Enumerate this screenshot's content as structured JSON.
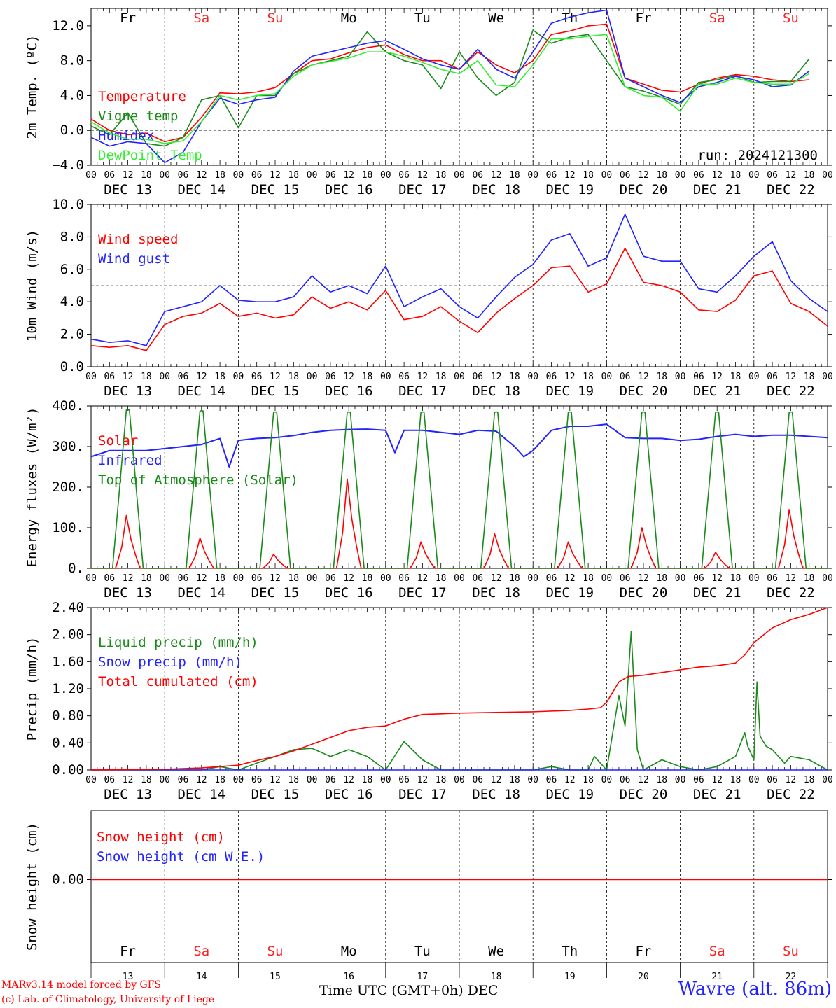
{
  "footer": {
    "model_line": "MARv3.14 model forced by GFS",
    "copyright_line": "(c) Lab. of Climatology, University of Liege",
    "x_title": "Time UTC (GMT+0h) DEC",
    "station": "Wavre (alt. 86m)"
  },
  "run_label": "run: 2024121300",
  "colors": {
    "red": "#ff0000",
    "green": "#1a8a1a",
    "blue": "#2323ff",
    "light_green": "#33ee33",
    "weekend": "#ff2020"
  },
  "chart_data": [
    {
      "type": "line",
      "ylabel": "2m Temp. (ºC)",
      "ylim": [
        -4,
        14
      ],
      "yticks": [
        "−4.0",
        "0.0",
        "4.0",
        "8.0",
        "12.0"
      ],
      "ytick_values": [
        -4,
        0,
        4,
        8,
        12
      ],
      "ref_line": 0,
      "day_names": [
        "Fr",
        "Sa",
        "Su",
        "Mo",
        "Tu",
        "We",
        "Th",
        "Fr",
        "Sa",
        "Su"
      ],
      "weekend": [
        false,
        true,
        true,
        false,
        false,
        false,
        false,
        false,
        true,
        true
      ],
      "x_hour_labels": [
        "00",
        "06",
        "12",
        "18"
      ],
      "x_date_labels": [
        "DEC 13",
        "DEC 14",
        "DEC 15",
        "DEC 16",
        "DEC 17",
        "DEC 18",
        "DEC 19",
        "DEC 20",
        "DEC 21",
        "DEC 22"
      ],
      "x_unit": "hours since 2024-12-13 00 UTC",
      "series": [
        {
          "name": "Temperature",
          "color": "#ff0000",
          "x": [
            0,
            6,
            12,
            18,
            24,
            30,
            36,
            42,
            48,
            54,
            60,
            66,
            72,
            78,
            84,
            90,
            96,
            102,
            108,
            114,
            120,
            126,
            132,
            138,
            144,
            150,
            156,
            162,
            168,
            174,
            180,
            186,
            192,
            198,
            204,
            210,
            216,
            222,
            228,
            234
          ],
          "y": [
            1.3,
            0.0,
            -0.5,
            -0.3,
            -1.3,
            -0.8,
            1.5,
            4.3,
            4.2,
            4.4,
            4.9,
            6.5,
            8.0,
            8.2,
            8.9,
            9.5,
            9.8,
            8.7,
            8.0,
            8.0,
            7.0,
            9.0,
            7.5,
            6.6,
            8.0,
            11.0,
            11.4,
            12.0,
            12.2,
            6.0,
            5.3,
            4.6,
            4.4,
            5.3,
            6.0,
            6.4,
            6.2,
            5.8,
            5.6,
            5.8
          ]
        },
        {
          "name": "Vigne temp",
          "color": "#1a8a1a",
          "x": [
            0,
            6,
            12,
            18,
            24,
            30,
            36,
            42,
            48,
            54,
            60,
            66,
            72,
            78,
            84,
            90,
            96,
            102,
            108,
            114,
            120,
            126,
            132,
            138,
            144,
            150,
            156,
            162,
            168,
            174,
            180,
            186,
            192,
            198,
            204,
            210,
            216,
            222,
            228,
            234
          ],
          "y": [
            0.5,
            -0.5,
            2.0,
            -1.5,
            -1.8,
            -0.8,
            3.5,
            4.0,
            0.3,
            4.0,
            4.0,
            6.5,
            7.5,
            8.0,
            8.5,
            11.3,
            9.0,
            8.0,
            7.5,
            4.8,
            9.0,
            6.0,
            4.0,
            5.5,
            11.5,
            10.0,
            10.7,
            11.0,
            8.0,
            5.0,
            4.5,
            3.8,
            3.0,
            5.5,
            5.8,
            6.3,
            5.5,
            5.6,
            5.6,
            8.2
          ]
        },
        {
          "name": "Humidex",
          "color": "#2323ff",
          "x": [
            0,
            6,
            12,
            18,
            24,
            30,
            36,
            42,
            48,
            54,
            60,
            66,
            72,
            78,
            84,
            90,
            96,
            102,
            108,
            114,
            120,
            126,
            132,
            138,
            144,
            150,
            156,
            162,
            168,
            174,
            180,
            186,
            192,
            198,
            204,
            210,
            216,
            222,
            228,
            234
          ],
          "y": [
            -0.8,
            -1.8,
            -1.3,
            -1.5,
            -3.7,
            -2.5,
            1.0,
            3.7,
            3.0,
            3.5,
            3.8,
            6.8,
            8.5,
            9.0,
            9.5,
            10.0,
            10.3,
            9.3,
            8.2,
            7.5,
            7.0,
            9.3,
            7.0,
            6.0,
            9.0,
            12.3,
            13.0,
            13.5,
            13.8,
            6.0,
            5.0,
            4.0,
            3.2,
            5.0,
            5.5,
            6.2,
            5.8,
            5.0,
            5.2,
            6.8
          ]
        },
        {
          "name": "DewPoint Temp",
          "color": "#33ee33",
          "x": [
            0,
            6,
            12,
            18,
            24,
            30,
            36,
            42,
            48,
            54,
            60,
            66,
            72,
            78,
            84,
            90,
            96,
            102,
            108,
            114,
            120,
            126,
            132,
            138,
            144,
            150,
            156,
            162,
            168,
            174,
            180,
            186,
            192,
            198,
            204,
            210,
            216,
            222,
            228,
            234
          ],
          "y": [
            1.0,
            -0.3,
            -1.0,
            -1.0,
            -1.5,
            -1.2,
            1.0,
            4.0,
            3.5,
            4.0,
            4.2,
            6.2,
            7.5,
            7.9,
            8.3,
            9.0,
            9.0,
            8.5,
            7.8,
            7.0,
            6.5,
            8.0,
            5.2,
            5.0,
            7.5,
            10.5,
            10.5,
            10.8,
            11.0,
            5.0,
            4.0,
            3.8,
            2.2,
            5.3,
            5.3,
            6.0,
            5.5,
            5.3,
            5.3,
            6.5
          ]
        }
      ]
    },
    {
      "type": "line",
      "ylabel": "10m Wind (m/s)",
      "ylim": [
        0,
        10
      ],
      "yticks": [
        "0.0",
        "2.0",
        "4.0",
        "6.0",
        "8.0",
        "10.0"
      ],
      "ytick_values": [
        0,
        2,
        4,
        6,
        8,
        10
      ],
      "ref_line": 5,
      "x_hour_labels": [
        "00",
        "06",
        "12",
        "18"
      ],
      "x_date_labels": [
        "DEC 13",
        "DEC 14",
        "DEC 15",
        "DEC 16",
        "DEC 17",
        "DEC 18",
        "DEC 19",
        "DEC 20",
        "DEC 21",
        "DEC 22"
      ],
      "series": [
        {
          "name": "Wind speed",
          "color": "#ff0000",
          "x": [
            0,
            6,
            12,
            18,
            24,
            30,
            36,
            42,
            48,
            54,
            60,
            66,
            72,
            78,
            84,
            90,
            96,
            102,
            108,
            114,
            120,
            126,
            132,
            138,
            144,
            150,
            156,
            162,
            168,
            174,
            180,
            186,
            192,
            198,
            204,
            210,
            216,
            222,
            228,
            234,
            240
          ],
          "y": [
            1.3,
            1.2,
            1.3,
            1.0,
            2.6,
            3.1,
            3.3,
            3.9,
            3.1,
            3.3,
            3.0,
            3.2,
            4.3,
            3.6,
            4.0,
            3.5,
            4.7,
            2.9,
            3.1,
            3.7,
            2.8,
            2.1,
            3.3,
            4.2,
            5.0,
            6.1,
            6.2,
            4.6,
            5.1,
            7.3,
            5.2,
            5.0,
            4.6,
            3.5,
            3.4,
            4.1,
            5.6,
            5.9,
            3.9,
            3.4,
            2.5
          ]
        },
        {
          "name": "Wind gust",
          "color": "#2323ff",
          "x": [
            0,
            6,
            12,
            18,
            24,
            30,
            36,
            42,
            48,
            54,
            60,
            66,
            72,
            78,
            84,
            90,
            96,
            102,
            108,
            114,
            120,
            126,
            132,
            138,
            144,
            150,
            156,
            162,
            168,
            174,
            180,
            186,
            192,
            198,
            204,
            210,
            216,
            222,
            228,
            234,
            240
          ],
          "y": [
            1.7,
            1.5,
            1.6,
            1.3,
            3.4,
            3.7,
            4.0,
            5.0,
            4.1,
            4.0,
            4.0,
            4.3,
            5.6,
            4.6,
            5.0,
            4.5,
            6.2,
            3.7,
            4.3,
            4.8,
            3.7,
            3.0,
            4.3,
            5.5,
            6.3,
            7.8,
            8.2,
            6.2,
            6.7,
            9.4,
            6.8,
            6.5,
            6.5,
            4.8,
            4.6,
            5.6,
            6.8,
            7.7,
            5.3,
            4.2,
            3.4
          ]
        }
      ]
    },
    {
      "type": "line",
      "ylabel": "Energy fluxes (W/m²)",
      "ylim": [
        0,
        400
      ],
      "yticks": [
        "0.",
        "100.",
        "200.",
        "300.",
        "400."
      ],
      "ytick_values": [
        0,
        100,
        200,
        300,
        400
      ],
      "x_hour_labels": [
        "00",
        "06",
        "12",
        "18"
      ],
      "x_date_labels": [
        "DEC 13",
        "DEC 14",
        "DEC 15",
        "DEC 16",
        "DEC 17",
        "DEC 18",
        "DEC 19",
        "DEC 20",
        "DEC 21",
        "DEC 22"
      ],
      "daily_peaks": {
        "solar": [
          130,
          75,
          35,
          220,
          65,
          85,
          65,
          100,
          40,
          145
        ],
        "top_of_atmosphere": [
          390,
          388,
          385,
          385,
          385,
          385,
          385,
          385,
          385,
          385
        ]
      },
      "series": [
        {
          "name": "Solar",
          "color": "#ff0000"
        },
        {
          "name": "Infrared",
          "color": "#2323ff",
          "x": [
            0,
            6,
            12,
            18,
            24,
            30,
            36,
            42,
            45,
            48,
            54,
            60,
            66,
            72,
            78,
            84,
            90,
            96,
            99,
            102,
            108,
            114,
            120,
            126,
            132,
            138,
            141,
            144,
            150,
            156,
            162,
            168,
            174,
            180,
            186,
            192,
            198,
            204,
            210,
            216,
            222,
            228,
            234,
            240
          ],
          "y": [
            275,
            290,
            290,
            290,
            295,
            300,
            305,
            320,
            250,
            315,
            320,
            322,
            327,
            335,
            340,
            342,
            343,
            340,
            285,
            340,
            340,
            335,
            330,
            340,
            338,
            300,
            275,
            290,
            340,
            350,
            350,
            355,
            322,
            320,
            320,
            315,
            318,
            325,
            330,
            325,
            328,
            328,
            325,
            322
          ]
        },
        {
          "name": "Top of Atmosphere (Solar)",
          "color": "#1a8a1a"
        }
      ]
    },
    {
      "type": "line",
      "ylabel": "Precip (mm/h)",
      "ylim": [
        0,
        2.4
      ],
      "yticks": [
        "0.00",
        "0.40",
        "0.80",
        "1.20",
        "1.60",
        "2.00",
        "2.40"
      ],
      "ytick_values": [
        0,
        0.4,
        0.8,
        1.2,
        1.6,
        2.0,
        2.4
      ],
      "x_hour_labels": [
        "00",
        "06",
        "12",
        "18"
      ],
      "x_date_labels": [
        "DEC 13",
        "DEC 14",
        "DEC 15",
        "DEC 16",
        "DEC 17",
        "DEC 18",
        "DEC 19",
        "DEC 20",
        "DEC 21",
        "DEC 22"
      ],
      "series": [
        {
          "name": "Liquid precip (mm/h)",
          "color": "#1a8a1a",
          "x": [
            0,
            36,
            42,
            48,
            54,
            60,
            66,
            72,
            78,
            84,
            90,
            96,
            102,
            108,
            114,
            120,
            144,
            150,
            156,
            162,
            164,
            168,
            172,
            174,
            176,
            178,
            180,
            186,
            192,
            198,
            204,
            210,
            213,
            214,
            216,
            217,
            218,
            220,
            222,
            226,
            228,
            234,
            240
          ],
          "y": [
            0,
            0,
            0.05,
            0,
            0.1,
            0.2,
            0.3,
            0.32,
            0.2,
            0.3,
            0.2,
            0,
            0.42,
            0.15,
            0,
            0,
            0,
            0.05,
            0,
            0,
            0.2,
            0,
            1.1,
            0.65,
            2.05,
            0.3,
            0,
            0.15,
            0.05,
            0,
            0.05,
            0.2,
            0.55,
            0.35,
            0.15,
            1.3,
            0.5,
            0.35,
            0.3,
            0.1,
            0.2,
            0.15,
            0
          ]
        },
        {
          "name": "Snow precip (mm/h)",
          "color": "#2323ff",
          "x": [
            0,
            240
          ],
          "y": [
            0,
            0
          ]
        },
        {
          "name": "Total cumulated (cm)",
          "color": "#ff0000",
          "x": [
            0,
            24,
            36,
            48,
            54,
            60,
            66,
            72,
            78,
            84,
            90,
            96,
            102,
            108,
            114,
            120,
            132,
            144,
            156,
            162,
            166,
            168,
            172,
            175,
            180,
            186,
            192,
            198,
            204,
            210,
            213,
            216,
            222,
            228,
            234,
            240
          ],
          "y": [
            0,
            0.01,
            0.03,
            0.07,
            0.14,
            0.2,
            0.28,
            0.38,
            0.48,
            0.58,
            0.63,
            0.65,
            0.75,
            0.82,
            0.83,
            0.84,
            0.85,
            0.86,
            0.88,
            0.9,
            0.92,
            1.0,
            1.3,
            1.38,
            1.4,
            1.44,
            1.48,
            1.52,
            1.54,
            1.58,
            1.7,
            1.88,
            2.1,
            2.22,
            2.3,
            2.4
          ]
        }
      ]
    },
    {
      "type": "line",
      "ylabel": "Snow height (cm)",
      "yticks": [
        "0.00"
      ],
      "ytick_values": [
        0
      ],
      "x_day_numbers": [
        "13",
        "14",
        "15",
        "16",
        "17",
        "18",
        "19",
        "20",
        "21",
        "22"
      ],
      "series": [
        {
          "name": "Snow height (cm)",
          "color": "#ff0000",
          "x": [
            0,
            240
          ],
          "y": [
            0,
            0
          ]
        },
        {
          "name": "Snow height (cm W.E.)",
          "color": "#2323ff"
        }
      ]
    }
  ]
}
